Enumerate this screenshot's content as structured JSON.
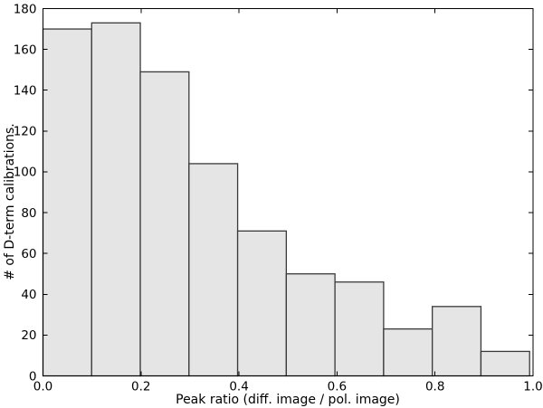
{
  "chart_data": {
    "type": "bar",
    "subtype": "histogram",
    "title": "",
    "xlabel": "Peak ratio (diff. image / pol. image)",
    "ylabel": "# of D-term calibrations.",
    "bin_edges": [
      0.0,
      0.0993,
      0.1986,
      0.2979,
      0.3972,
      0.4965,
      0.5958,
      0.6951,
      0.7944,
      0.8937,
      0.993
    ],
    "values": [
      170,
      173,
      149,
      104,
      71,
      50,
      46,
      23,
      34,
      12
    ],
    "xlim": [
      0.0,
      1.0
    ],
    "ylim": [
      0,
      180
    ],
    "x_ticks": [
      0.0,
      0.2,
      0.4,
      0.6,
      0.8,
      1.0
    ],
    "x_tick_labels": [
      "0.0",
      "0.2",
      "0.4",
      "0.6",
      "0.8",
      "1.0"
    ],
    "y_ticks": [
      0,
      20,
      40,
      60,
      80,
      100,
      120,
      140,
      160,
      180
    ],
    "y_tick_labels": [
      "0",
      "20",
      "40",
      "60",
      "80",
      "100",
      "120",
      "140",
      "160",
      "180"
    ],
    "grid": false,
    "legend": null,
    "tick_direction": "in",
    "box": true,
    "colors": {
      "bar_fill": "#e5e5e5",
      "bar_edge": "#3a3a3a",
      "axis": "#000000",
      "text": "#000000",
      "background": "#ffffff"
    }
  }
}
